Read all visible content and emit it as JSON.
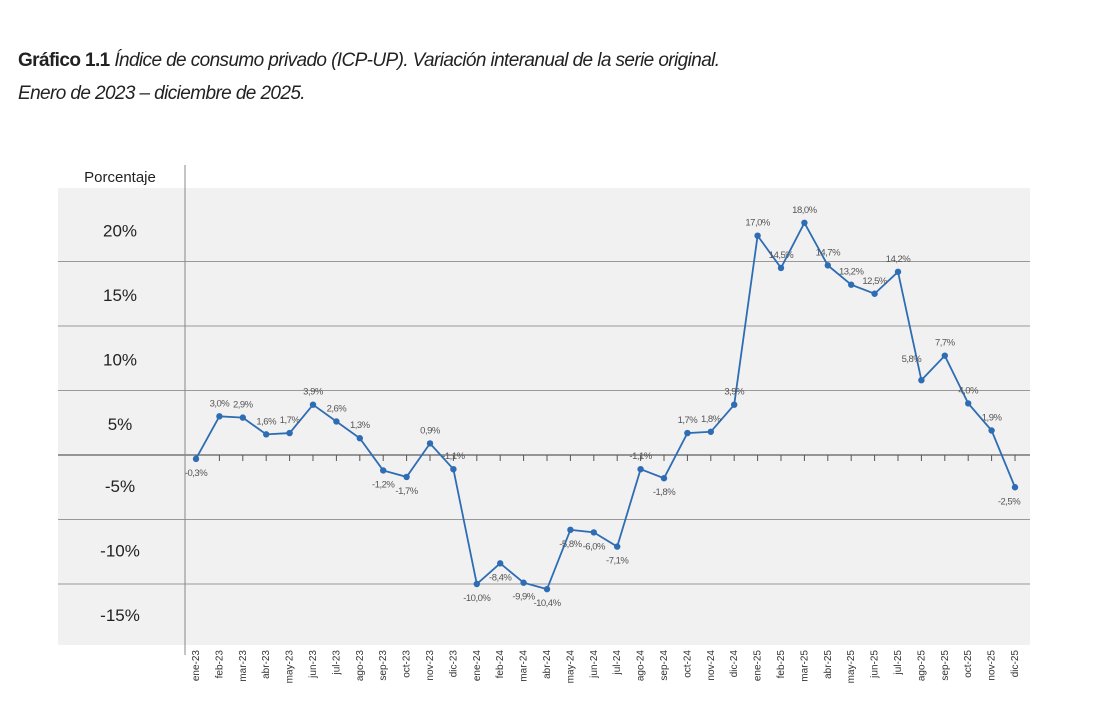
{
  "chart_data": {
    "type": "line",
    "title_bold": "Gráfico 1.1",
    "title": "Índice de consumo privado (ICP-UP). Variación interanual de la serie original.",
    "subtitle": "Enero de 2023 – diciembre de 2025.",
    "ylabel": "Porcentaje",
    "xlabel": "",
    "ylim": [
      -15,
      20
    ],
    "yticks": [
      20,
      15,
      10,
      5,
      -5,
      -10,
      -15
    ],
    "ytick_labels": [
      "20%",
      "15%",
      "10%",
      "5%",
      "-5%",
      "-10%",
      "-15%"
    ],
    "gridlines": [
      15,
      10,
      5,
      0,
      -5,
      -10
    ],
    "grid": true,
    "legend": "none",
    "categories": [
      "ene-23",
      "feb-23",
      "mar-23",
      "abr-23",
      "may-23",
      "jun-23",
      "jul-23",
      "ago-23",
      "sep-23",
      "oct-23",
      "nov-23",
      "dic-23",
      "ene-24",
      "feb-24",
      "mar-24",
      "abr-24",
      "may-24",
      "jun-24",
      "jul-24",
      "ago-24",
      "sep-24",
      "oct-24",
      "nov-24",
      "dic-24",
      "ene-25",
      "feb-25",
      "mar-25",
      "abr-25",
      "may-25",
      "jun-25",
      "jul-25",
      "ago-25",
      "sep-25",
      "oct-25",
      "nov-25",
      "dic-25"
    ],
    "series": [
      {
        "name": "ICP-UP variación interanual",
        "color": "#2e6db4",
        "values": [
          -0.3,
          3.0,
          2.9,
          1.6,
          1.7,
          3.9,
          2.6,
          1.3,
          -1.2,
          -1.7,
          0.9,
          -1.1,
          -10.0,
          -8.4,
          -9.9,
          -10.4,
          -5.8,
          -6.0,
          -7.1,
          -1.1,
          -1.8,
          1.7,
          1.8,
          3.9,
          17.0,
          14.5,
          18.0,
          14.7,
          13.2,
          12.5,
          14.2,
          5.8,
          7.7,
          4.0,
          1.9,
          -2.5
        ],
        "labels": [
          "-0,3%",
          "3,0%",
          "2,9%",
          "1,6%",
          "1,7%",
          "3,9%",
          "2,6%",
          "1,3%",
          "-1,2%",
          "-1,7%",
          "0,9%",
          "-1,1%",
          "-10,0%",
          "-8,4%",
          "-9,9%",
          "-10,4%",
          "-5,8%",
          "-6,0%",
          "-7,1%",
          "-1,1%",
          "-1,8%",
          "1,7%",
          "1,8%",
          "3,9%",
          "17,0%",
          "14,5%",
          "18,0%",
          "14,7%",
          "13,2%",
          "12,5%",
          "14,2%",
          "5,8%",
          "7,7%",
          "4,0%",
          "1,9%",
          "-2,5%"
        ]
      }
    ]
  }
}
